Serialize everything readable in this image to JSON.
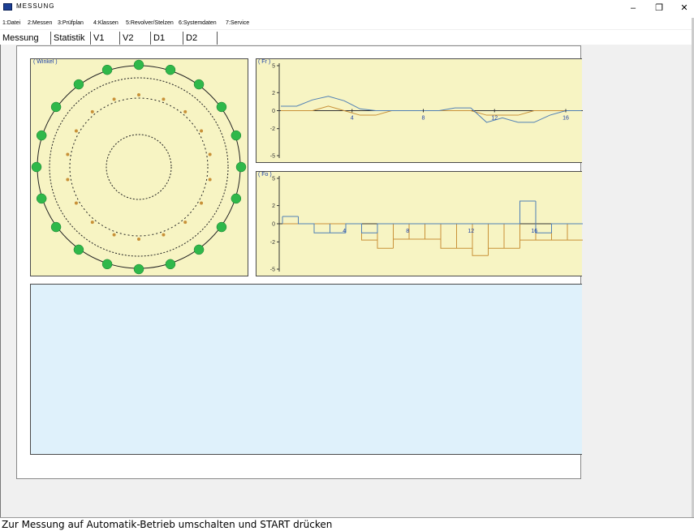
{
  "window": {
    "title": "MESSUNG",
    "min_glyph": "–",
    "max_glyph": "❐",
    "close_glyph": "✕"
  },
  "menu": [
    "1:Datei",
    "2:Messen",
    "3:Prüfplan",
    "4:Klassen",
    "5:Revolver/Stelzen",
    "6:Systemdaten",
    "7:Service"
  ],
  "tabs": [
    "Messung",
    "Statistik",
    "V1",
    "V2",
    "D1",
    "D2"
  ],
  "panels": {
    "winkel_label": "( Winkel )",
    "fr_label": "( Fr )",
    "fo_label": "( Fo )"
  },
  "colors": {
    "panel_bg": "#f7f4c3",
    "blue_panel_bg": "#dff1fb",
    "series_blue": "#4f7fb5",
    "series_orange": "#c89138",
    "green_dot": "#2fb84a",
    "axis_label": "#1a3fa8"
  },
  "chart_data": [
    {
      "type": "scatter",
      "name_key": "winkel",
      "outer_points": 20,
      "inner_points": 18
    },
    {
      "type": "line",
      "name_key": "fr",
      "yticks": [
        "5",
        "2",
        "0",
        "-2",
        "-5"
      ],
      "xticks": [
        "4",
        "8",
        "12",
        "16"
      ],
      "ylim": [
        -5,
        5
      ],
      "x_blue": [
        0,
        1,
        2,
        3,
        4,
        5,
        6,
        7,
        8,
        9,
        10,
        11,
        12,
        13,
        14,
        15,
        16,
        17,
        18,
        19
      ],
      "y_blue": [
        0.5,
        0.5,
        1.2,
        1.6,
        1.1,
        0.2,
        0.0,
        0.0,
        0.0,
        0.0,
        0.0,
        0.3,
        0.3,
        -1.3,
        -0.8,
        -1.3,
        -1.3,
        -0.5,
        0.0,
        0.0
      ],
      "x_orange": [
        0,
        1,
        2,
        3,
        4,
        5,
        6,
        7,
        8,
        9,
        10,
        11,
        12,
        13,
        14,
        15,
        16,
        17,
        18,
        19
      ],
      "y_orange": [
        0.0,
        0.0,
        0.0,
        0.5,
        0.0,
        -0.5,
        -0.5,
        0.0,
        0.0,
        0.0,
        0.0,
        0.0,
        0.0,
        -0.5,
        -0.5,
        -0.5,
        0.0,
        0.0,
        0.0,
        0.0
      ]
    },
    {
      "type": "line",
      "name_key": "fo",
      "yticks": [
        "5",
        "2",
        "0",
        "-2",
        "-5"
      ],
      "xticks": [
        "4",
        "8",
        "12",
        "16"
      ],
      "ylim": [
        -5,
        5
      ],
      "steps_blue": [
        0.8,
        0.0,
        -1.0,
        -1.0,
        0.0,
        -1.0,
        0.0,
        0.0,
        0.0,
        0.0,
        0.0,
        0.0,
        0.0,
        0.0,
        0.0,
        2.5,
        -1.0,
        0.0,
        0.0
      ],
      "steps_orange": [
        0.0,
        0.0,
        0.0,
        0.0,
        0.0,
        -1.8,
        -2.7,
        -1.7,
        -1.7,
        -1.7,
        -2.7,
        -2.7,
        -3.5,
        -2.7,
        -2.7,
        -1.8,
        -1.8,
        -1.8,
        -1.8
      ]
    }
  ],
  "status": "Zur Messung auf Automatik-Betrieb umschalten und START drücken"
}
